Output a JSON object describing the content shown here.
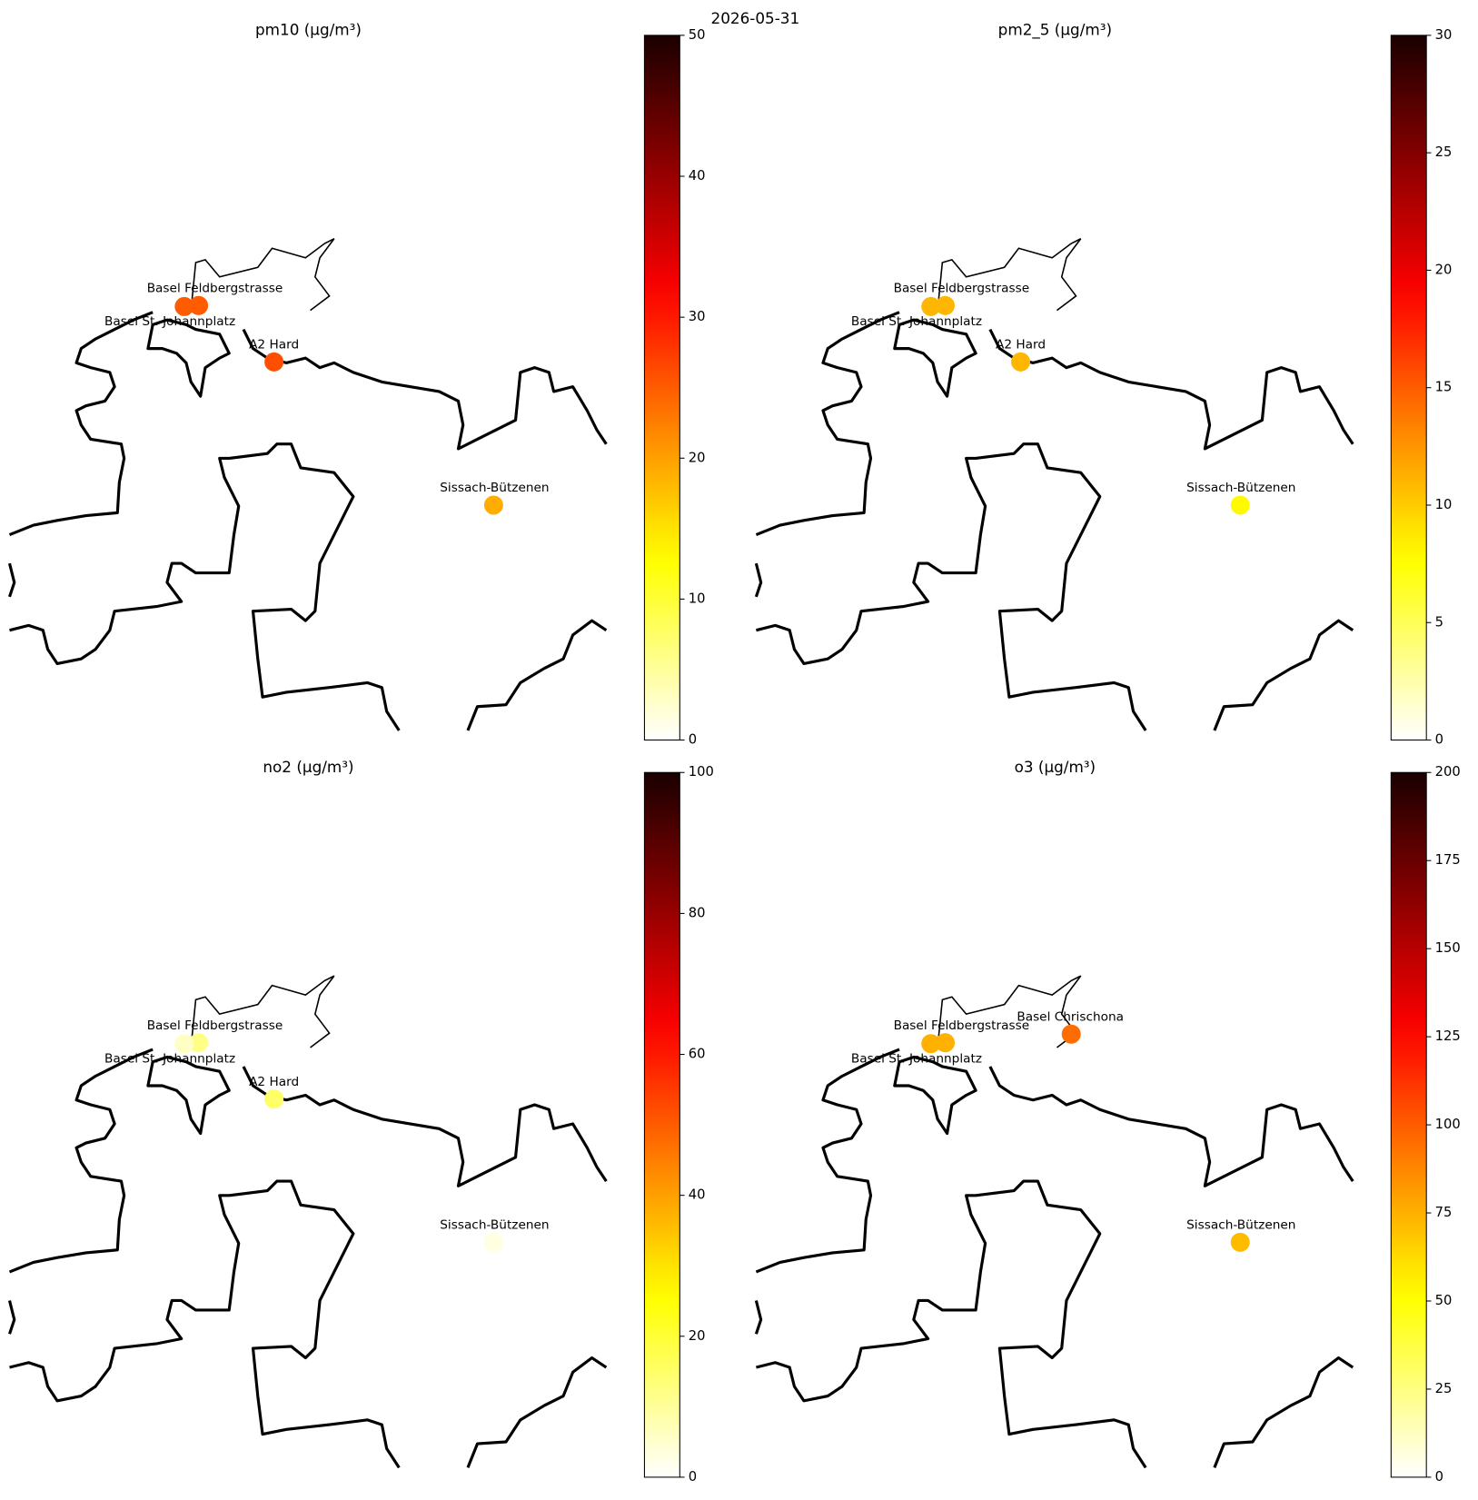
{
  "title": "2026-05-31",
  "chart_data": [
    {
      "type": "map",
      "title": "pm10 (µg/m³)",
      "colormap": "hot_r",
      "stations": [
        "Basel Feldbergstrasse",
        "Basel St. Johannplatz",
        "A2 Hard",
        "Sissach-Bützenen"
      ],
      "values": [
        25,
        25,
        26,
        19
      ],
      "ylim": [
        0,
        50
      ],
      "yticks": [
        0,
        10,
        20,
        30,
        40,
        50
      ]
    },
    {
      "type": "map",
      "title": "pm2_5 (µg/m³)",
      "colormap": "hot_r",
      "stations": [
        "Basel Feldbergstrasse",
        "Basel St. Johannplatz",
        "A2 Hard",
        "Sissach-Bützenen"
      ],
      "values": [
        11,
        11,
        11,
        8
      ],
      "ylim": [
        0,
        30
      ],
      "yticks": [
        0,
        5,
        10,
        15,
        20,
        25,
        30
      ]
    },
    {
      "type": "map",
      "title": "no2 (µg/m³)",
      "colormap": "hot_r",
      "stations": [
        "Basel Feldbergstrasse",
        "Basel St. Johannplatz",
        "A2 Hard",
        "Sissach-Bützenen"
      ],
      "values": [
        12,
        6,
        15,
        3
      ],
      "ylim": [
        0,
        100
      ],
      "yticks": [
        0,
        20,
        40,
        60,
        80,
        100
      ]
    },
    {
      "type": "map",
      "title": "o3 (µg/m³)",
      "colormap": "hot_r",
      "stations": [
        "Basel Chrischona",
        "Basel Feldbergstrasse",
        "Basel St. Johannplatz",
        "Sissach-Bützenen"
      ],
      "values": [
        95,
        75,
        75,
        72
      ],
      "ylim": [
        0,
        200
      ],
      "yticks": [
        0,
        25,
        50,
        75,
        100,
        125,
        150,
        175,
        200
      ]
    }
  ]
}
